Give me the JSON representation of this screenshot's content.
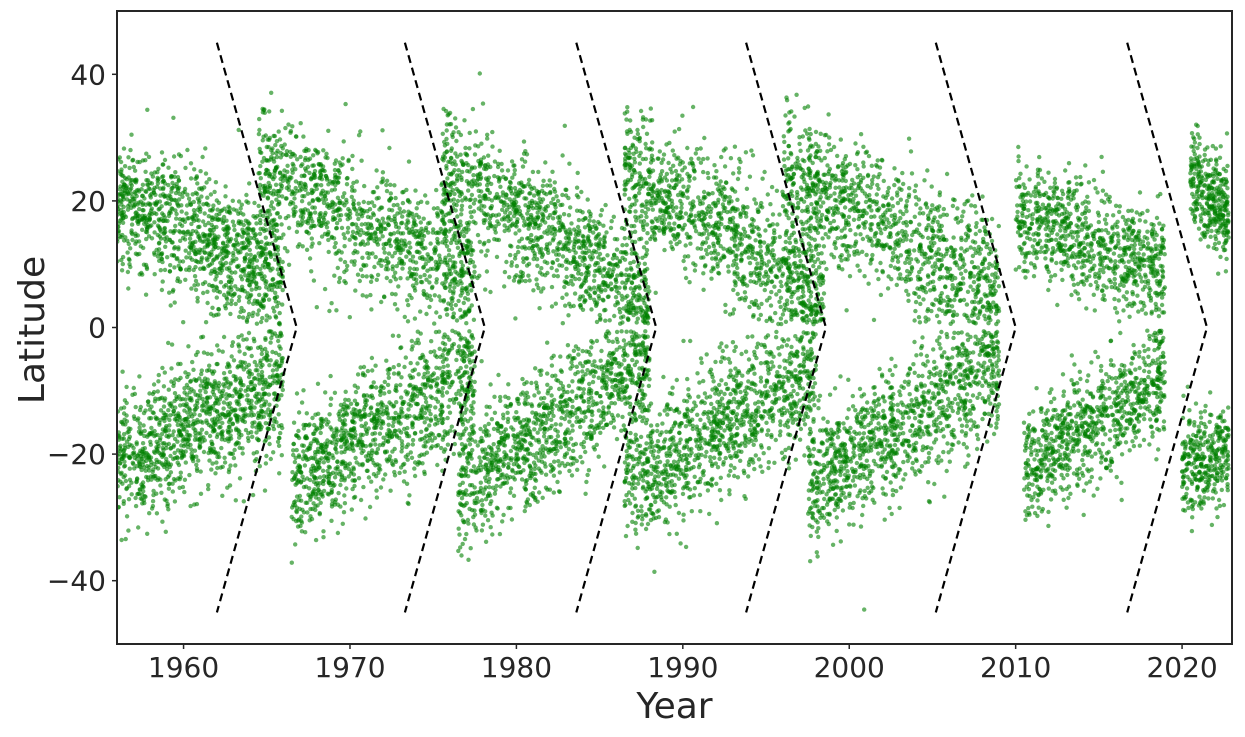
{
  "chart_data": {
    "type": "scatter",
    "title": "",
    "xlabel": "Year",
    "ylabel": "Latitude",
    "xlim": [
      1956,
      2023
    ],
    "ylim": [
      -50,
      50
    ],
    "x_ticks": [
      1960,
      1970,
      1980,
      1990,
      2000,
      2010,
      2020
    ],
    "x_tick_labels": [
      "1960",
      "1970",
      "1980",
      "1990",
      "2000",
      "2010",
      "2020"
    ],
    "y_ticks": [
      -40,
      -20,
      0,
      20,
      40
    ],
    "y_tick_labels": [
      "−40",
      "−20",
      "0",
      "20",
      "40"
    ],
    "grid": false,
    "legend": "none",
    "point_color": "#008000",
    "point_opacity": 0.6,
    "guide_color": "#000000",
    "scatter_clusters": [
      {
        "hemisphere": "north",
        "x_range": [
          1956.0,
          1966.0
        ],
        "lat_start": 20,
        "lat_end": 8,
        "spread": 7,
        "density": 1.0
      },
      {
        "hemisphere": "north",
        "x_range": [
          1964.5,
          1977.5
        ],
        "lat_start": 25,
        "lat_end": 7,
        "spread": 7,
        "density": 1.0
      },
      {
        "hemisphere": "north",
        "x_range": [
          1975.5,
          1988.0
        ],
        "lat_start": 25,
        "lat_end": 5,
        "spread": 7,
        "density": 1.0
      },
      {
        "hemisphere": "north",
        "x_range": [
          1986.5,
          1998.5
        ],
        "lat_start": 25,
        "lat_end": 5,
        "spread": 7,
        "density": 1.0
      },
      {
        "hemisphere": "north",
        "x_range": [
          1996.0,
          2009.0
        ],
        "lat_start": 25,
        "lat_end": 6,
        "spread": 7,
        "density": 1.0
      },
      {
        "hemisphere": "north",
        "x_range": [
          2010.0,
          2019.0
        ],
        "lat_start": 18,
        "lat_end": 9,
        "spread": 6,
        "density": 0.75
      },
      {
        "hemisphere": "north",
        "x_range": [
          2020.5,
          2022.8
        ],
        "lat_start": 24,
        "lat_end": 18,
        "spread": 5,
        "density": 0.3
      },
      {
        "hemisphere": "south",
        "x_range": [
          1956.0,
          1966.0
        ],
        "lat_start": -22,
        "lat_end": -8,
        "spread": 7,
        "density": 1.0
      },
      {
        "hemisphere": "south",
        "x_range": [
          1966.5,
          1977.5
        ],
        "lat_start": -24,
        "lat_end": -7,
        "spread": 7,
        "density": 1.0
      },
      {
        "hemisphere": "south",
        "x_range": [
          1976.5,
          1988.0
        ],
        "lat_start": -25,
        "lat_end": -6,
        "spread": 7,
        "density": 1.0
      },
      {
        "hemisphere": "south",
        "x_range": [
          1986.5,
          1998.0
        ],
        "lat_start": -25,
        "lat_end": -7,
        "spread": 7,
        "density": 1.0
      },
      {
        "hemisphere": "south",
        "x_range": [
          1997.5,
          2009.0
        ],
        "lat_start": -25,
        "lat_end": -6,
        "spread": 7,
        "density": 1.0
      },
      {
        "hemisphere": "south",
        "x_range": [
          2010.5,
          2019.0
        ],
        "lat_start": -22,
        "lat_end": -8,
        "spread": 6,
        "density": 0.75
      },
      {
        "hemisphere": "south",
        "x_range": [
          2020.0,
          2022.8
        ],
        "lat_start": -22,
        "lat_end": -20,
        "spread": 5,
        "density": 0.3
      }
    ],
    "guide_lines": [
      {
        "x_top": 1962.0,
        "x_mid": 1966.8,
        "x_bottom": 1962.0,
        "lat_top": 45,
        "lat_mid": 0,
        "lat_bottom": -45
      },
      {
        "x_top": 1973.3,
        "x_mid": 1978.1,
        "x_bottom": 1973.3,
        "lat_top": 45,
        "lat_mid": 0,
        "lat_bottom": -45
      },
      {
        "x_top": 1983.6,
        "x_mid": 1988.4,
        "x_bottom": 1983.6,
        "lat_top": 45,
        "lat_mid": 0,
        "lat_bottom": -45
      },
      {
        "x_top": 1993.8,
        "x_mid": 1998.6,
        "x_bottom": 1993.8,
        "lat_top": 45,
        "lat_mid": 0,
        "lat_bottom": -45
      },
      {
        "x_top": 2005.2,
        "x_mid": 2010.0,
        "x_bottom": 2005.2,
        "lat_top": 45,
        "lat_mid": 0,
        "lat_bottom": -45
      },
      {
        "x_top": 2016.7,
        "x_mid": 2021.5,
        "x_bottom": 2016.7,
        "lat_top": 45,
        "lat_mid": 0,
        "lat_bottom": -45
      }
    ]
  }
}
